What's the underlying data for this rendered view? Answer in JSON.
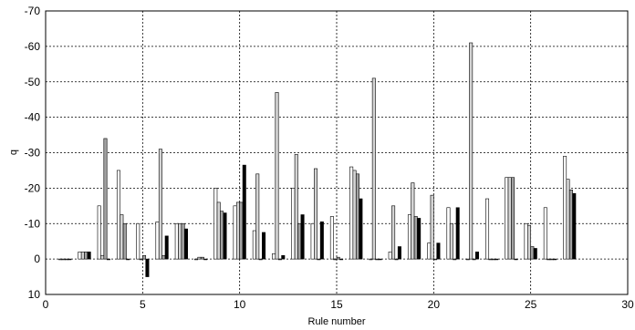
{
  "chart_data": {
    "type": "bar",
    "title": "",
    "xlabel": "Rule number",
    "ylabel": "q",
    "xlim": [
      0,
      30
    ],
    "ylim": [
      10,
      -70
    ],
    "y_axis_inverted": true,
    "grid": true,
    "x_ticks": [
      "0",
      "5",
      "10",
      "15",
      "20",
      "25",
      "30"
    ],
    "y_ticks": [
      "-70",
      "-60",
      "-50",
      "-40",
      "-30",
      "-20",
      "-10",
      "0",
      "10"
    ],
    "series_colors": [
      "#ffffff",
      "#d4d4d4",
      "#a2a2a2",
      "#000000"
    ],
    "categories": [
      1,
      2,
      3,
      4,
      5,
      6,
      7,
      8,
      9,
      10,
      11,
      12,
      13,
      14,
      15,
      16,
      17,
      18,
      19,
      20,
      21,
      22,
      23,
      24,
      25,
      26,
      27
    ],
    "series": [
      {
        "values": [
          0,
          -2,
          -15,
          -25,
          -10,
          -10.5,
          -10,
          0,
          -20,
          -15,
          -8,
          -1.5,
          -20,
          -10,
          -12,
          -26,
          0,
          -2,
          -12.5,
          -4.5,
          -14.5,
          0,
          -17,
          -23,
          -10,
          -14.5,
          -29
        ]
      },
      {
        "values": [
          0,
          -2,
          -1,
          -12.5,
          0,
          -31,
          -10,
          -0.5,
          -16,
          -16,
          -24,
          -47,
          -29.5,
          -25.5,
          0,
          -25,
          -51,
          -15,
          -21.5,
          -18,
          -10,
          -61,
          0,
          -23,
          -9.5,
          0,
          -22.5
        ]
      },
      {
        "values": [
          0,
          -2,
          -34,
          -10,
          -1,
          -1,
          -10,
          -0.5,
          -13.5,
          -16,
          0,
          0,
          -10,
          0,
          -0.5,
          -24,
          0,
          0,
          -12,
          0,
          0,
          0,
          0,
          -23,
          -3.5,
          0,
          -19.5
        ]
      },
      {
        "values": [
          0,
          -2,
          0,
          0,
          5,
          -6.5,
          -8.5,
          0,
          -13,
          -26.5,
          -7.5,
          -1,
          -12.5,
          -10.5,
          0,
          -17,
          0,
          -3.5,
          -11.5,
          -4.5,
          -14.5,
          -2,
          0,
          0,
          -3,
          0,
          -18.5
        ]
      }
    ]
  }
}
